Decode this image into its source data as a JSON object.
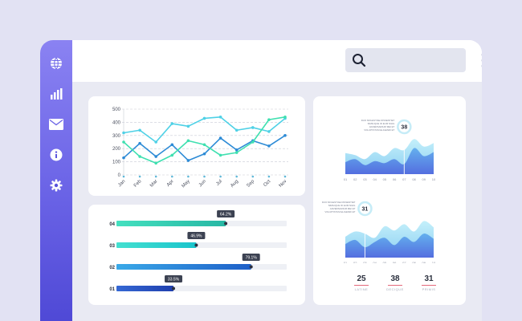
{
  "sidebar": {
    "items": [
      {
        "icon": "globe-icon"
      },
      {
        "icon": "bar-chart-icon"
      },
      {
        "icon": "mail-icon"
      },
      {
        "icon": "info-icon"
      },
      {
        "icon": "gear-icon"
      }
    ]
  },
  "header": {
    "search_placeholder": "",
    "menu_icon": "hamburger-menu-icon"
  },
  "colors": {
    "sidebar_top": "#8a82f2",
    "sidebar_bottom": "#4f49d6",
    "line_series_1": "#2d8bd6",
    "line_series_2": "#4fd1e6",
    "line_series_3": "#3fe0b0",
    "badge": "#3c4252",
    "area_front": "#4e6fe0",
    "area_back": "#9fe4f5"
  },
  "chart_data": [
    {
      "type": "line",
      "categories": [
        "Jan",
        "Feb",
        "Mar",
        "Apr",
        "May",
        "Jun",
        "Jul",
        "Aug",
        "Sep",
        "Oct",
        "Nov"
      ],
      "yticks": [
        0,
        100,
        200,
        300,
        400,
        500
      ],
      "ylim": [
        0,
        500
      ],
      "grid": true,
      "series": [
        {
          "values": [
            130,
            240,
            140,
            230,
            110,
            160,
            280,
            190,
            260,
            220,
            300
          ]
        },
        {
          "values": [
            320,
            340,
            250,
            390,
            370,
            430,
            440,
            340,
            360,
            330,
            430
          ]
        },
        {
          "values": [
            250,
            140,
            90,
            150,
            260,
            230,
            150,
            170,
            250,
            420,
            440
          ]
        }
      ]
    },
    {
      "type": "bar",
      "orientation": "horizontal",
      "categories": [
        "04",
        "03",
        "02",
        "01"
      ],
      "values": [
        64.2,
        46.9,
        79.1,
        33.5
      ],
      "value_labels": [
        "64.2%",
        "46.9%",
        "79.1%",
        "33.5%"
      ],
      "xlim": [
        0,
        100
      ]
    },
    {
      "type": "area",
      "callout": "38",
      "caption_lines": [
        "DUO MOLESTIAE DISSENTIET",
        "SIMILIQUE ID EUM NIHIL",
        "ADVERSARIUM MEI ET",
        "VOLUPTATUM ELIGENDI ET"
      ],
      "x": [
        "01",
        "02",
        "03",
        "04",
        "05",
        "06",
        "07",
        "08",
        "09",
        "10"
      ],
      "highlight_index": 6,
      "series": [
        {
          "values": [
            42,
            38,
            30,
            44,
            36,
            52,
            48,
            70,
            55,
            62
          ]
        },
        {
          "values": [
            24,
            30,
            18,
            26,
            22,
            30,
            20,
            52,
            36,
            44
          ]
        }
      ]
    },
    {
      "type": "area",
      "callout": "31",
      "caption_lines": [
        "DUO MOLESTIAE DISSENTIET",
        "SIMILIQUE ID EUM NIHIL",
        "ADVERSARIUM MEI ET",
        "VOLUPTATUM ELIGENDI ET"
      ],
      "x": [
        "01",
        "02",
        "03",
        "04",
        "05",
        "06",
        "07",
        "08",
        "09",
        "10"
      ],
      "highlight_index": 2,
      "series": [
        {
          "values": [
            40,
            50,
            46,
            38,
            60,
            52,
            64,
            50,
            70,
            58
          ]
        },
        {
          "values": [
            26,
            34,
            20,
            30,
            38,
            24,
            40,
            30,
            46,
            36
          ]
        }
      ]
    }
  ],
  "stats": [
    {
      "value": "25",
      "label": "LATINE"
    },
    {
      "value": "38",
      "label": "DECIQUE"
    },
    {
      "value": "31",
      "label": "PRIMIS"
    }
  ]
}
